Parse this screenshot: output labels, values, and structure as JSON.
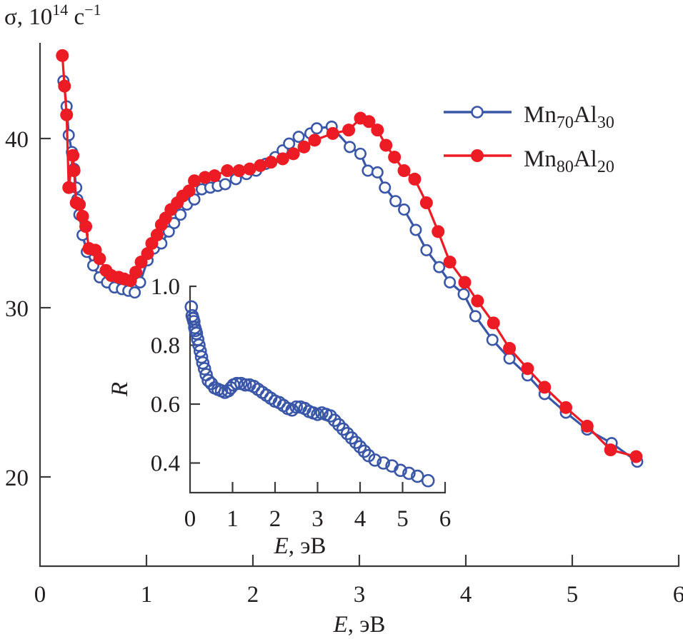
{
  "chart_data": [
    {
      "type": "line",
      "title": "",
      "ylabel": "σ, 10^14 с^-1",
      "ylabel_parts": {
        "base": "σ, 10",
        "sup1": "14",
        "unit": " с",
        "sup2": "−1"
      },
      "xlabel": "E, эВ",
      "xlabel_parts": {
        "italic": "E",
        "rest": ", эВ"
      },
      "xlim": [
        0,
        6
      ],
      "ylim": [
        15.3,
        46.3
      ],
      "xticks": [
        "0",
        "1",
        "2",
        "3",
        "4",
        "5",
        "6"
      ],
      "yticks": [
        "20",
        "30",
        "40"
      ],
      "grid": false,
      "legend_position": "top-right",
      "series": [
        {
          "name": "Mn70Al30",
          "label_parts": [
            "Mn",
            "70",
            "Al",
            "30"
          ],
          "color": "#3a56a8",
          "marker": "open-circle",
          "x": [
            0.22,
            0.25,
            0.27,
            0.3,
            0.32,
            0.34,
            0.35,
            0.37,
            0.4,
            0.44,
            0.5,
            0.56,
            0.63,
            0.7,
            0.77,
            0.83,
            0.89,
            0.94,
            1.01,
            1.07,
            1.14,
            1.21,
            1.26,
            1.32,
            1.38,
            1.45,
            1.52,
            1.6,
            1.67,
            1.74,
            1.84,
            1.94,
            2.03,
            2.12,
            2.21,
            2.28,
            2.34,
            2.43,
            2.54,
            2.6,
            2.74,
            2.91,
            3.01,
            3.08,
            3.17,
            3.24,
            3.34,
            3.42,
            3.53,
            3.63,
            3.75,
            3.85,
            3.98,
            4.09,
            4.25,
            4.41,
            4.58,
            4.74,
            4.94,
            5.14,
            5.37,
            5.61
          ],
          "y": [
            43.4,
            41.9,
            40.2,
            39.2,
            38.2,
            37.1,
            36.4,
            35.5,
            34.3,
            33.3,
            32.5,
            31.8,
            31.5,
            31.2,
            31.1,
            31.0,
            30.9,
            31.5,
            32.8,
            33.5,
            33.8,
            34.5,
            35.0,
            35.5,
            36.1,
            36.4,
            37.0,
            37.1,
            37.2,
            37.3,
            37.6,
            37.9,
            38.1,
            38.5,
            38.9,
            39.3,
            39.7,
            40.1,
            40.3,
            40.6,
            40.7,
            39.5,
            39.1,
            38.1,
            38.0,
            37.1,
            36.3,
            35.8,
            34.6,
            33.4,
            32.4,
            31.5,
            30.8,
            29.5,
            28.1,
            27.0,
            26.0,
            24.9,
            23.8,
            22.8,
            22.0,
            20.9
          ]
        },
        {
          "name": "Mn80Al20",
          "label_parts": [
            "Mn",
            "80",
            "Al",
            "20"
          ],
          "color": "#ed1c24",
          "marker": "filled-circle",
          "x": [
            0.21,
            0.23,
            0.25,
            0.27,
            0.31,
            0.32,
            0.34,
            0.37,
            0.4,
            0.43,
            0.46,
            0.52,
            0.56,
            0.62,
            0.67,
            0.74,
            0.79,
            0.85,
            0.9,
            0.95,
            1.01,
            1.05,
            1.1,
            1.14,
            1.18,
            1.23,
            1.29,
            1.34,
            1.4,
            1.45,
            1.55,
            1.64,
            1.76,
            1.87,
            1.97,
            2.07,
            2.17,
            2.28,
            2.38,
            2.48,
            2.58,
            2.75,
            2.9,
            3.01,
            3.09,
            3.17,
            3.25,
            3.33,
            3.42,
            3.52,
            3.63,
            3.74,
            3.85,
            3.99,
            4.11,
            4.26,
            4.41,
            4.58,
            4.74,
            4.94,
            5.14,
            5.36,
            5.6
          ],
          "y": [
            44.9,
            43.1,
            41.4,
            37.1,
            39.0,
            38.1,
            36.2,
            36.1,
            35.4,
            34.8,
            33.5,
            33.4,
            32.9,
            32.2,
            31.9,
            31.8,
            31.7,
            31.6,
            32.1,
            32.7,
            33.2,
            33.8,
            34.3,
            34.9,
            35.3,
            35.8,
            36.2,
            36.6,
            36.9,
            37.5,
            37.7,
            37.8,
            38.1,
            38.1,
            38.2,
            38.4,
            38.6,
            38.8,
            39.1,
            39.5,
            39.9,
            40.3,
            40.5,
            41.2,
            41.0,
            40.5,
            39.6,
            38.9,
            38.1,
            37.6,
            36.2,
            34.5,
            32.7,
            31.5,
            30.4,
            29.1,
            27.6,
            26.4,
            25.3,
            24.1,
            23.0,
            21.6,
            21.2
          ]
        }
      ]
    },
    {
      "type": "scatter",
      "title": "",
      "placement": "inset",
      "ylabel": "R",
      "xlabel": "E, эВ",
      "xlabel_parts": {
        "italic": "E",
        "rest": ", эВ"
      },
      "xlim": [
        0,
        6
      ],
      "ylim": [
        0.33,
        1.0
      ],
      "xticks": [
        "0",
        "1",
        "2",
        "3",
        "4",
        "5",
        "6"
      ],
      "yticks": [
        "0.4",
        "0.6",
        "0.8",
        "1.0"
      ],
      "grid": false,
      "series": [
        {
          "name": "R",
          "color": "#3a56a8",
          "marker": "open-circle",
          "x": [
            0.03,
            0.05,
            0.07,
            0.09,
            0.11,
            0.13,
            0.15,
            0.18,
            0.21,
            0.24,
            0.27,
            0.3,
            0.34,
            0.38,
            0.43,
            0.5,
            0.58,
            0.66,
            0.74,
            0.82,
            0.9,
            0.96,
            1.02,
            1.1,
            1.2,
            1.3,
            1.4,
            1.5,
            1.6,
            1.7,
            1.8,
            1.9,
            2.0,
            2.1,
            2.2,
            2.3,
            2.4,
            2.5,
            2.6,
            2.7,
            2.8,
            2.9,
            3.0,
            3.1,
            3.2,
            3.3,
            3.4,
            3.5,
            3.6,
            3.7,
            3.8,
            3.9,
            4.0,
            4.1,
            4.2,
            4.35,
            4.55,
            4.75,
            4.95,
            5.15,
            5.35,
            5.6
          ],
          "y": [
            0.93,
            0.9,
            0.89,
            0.88,
            0.86,
            0.85,
            0.84,
            0.82,
            0.8,
            0.78,
            0.76,
            0.74,
            0.72,
            0.7,
            0.68,
            0.67,
            0.655,
            0.65,
            0.645,
            0.64,
            0.645,
            0.655,
            0.665,
            0.67,
            0.67,
            0.665,
            0.665,
            0.66,
            0.65,
            0.64,
            0.63,
            0.62,
            0.61,
            0.605,
            0.595,
            0.585,
            0.58,
            0.59,
            0.59,
            0.585,
            0.575,
            0.57,
            0.565,
            0.57,
            0.565,
            0.56,
            0.545,
            0.53,
            0.515,
            0.5,
            0.485,
            0.47,
            0.455,
            0.44,
            0.425,
            0.41,
            0.4,
            0.39,
            0.375,
            0.365,
            0.355,
            0.34
          ]
        }
      ]
    }
  ]
}
